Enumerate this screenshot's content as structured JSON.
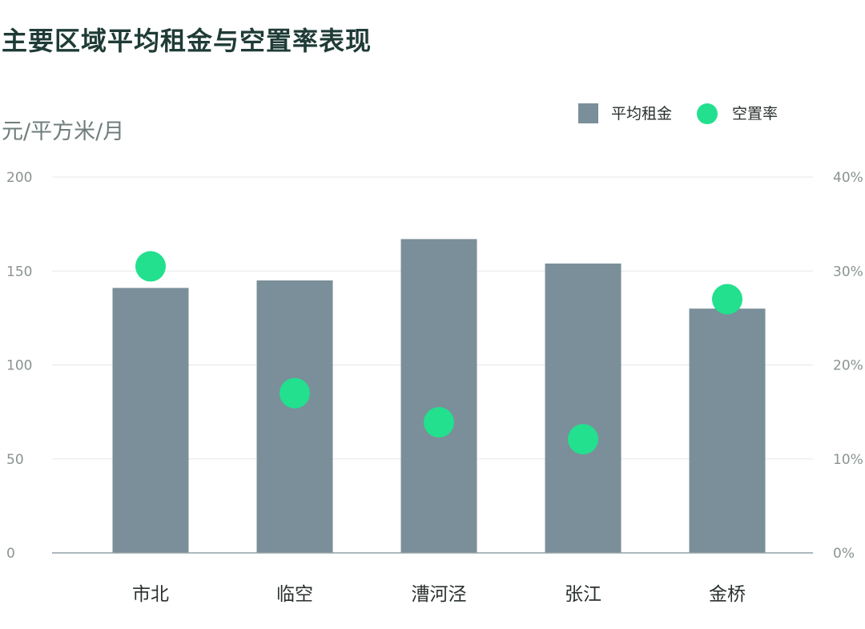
{
  "chart_data": {
    "type": "bar",
    "title": "主要区域平均租金与空置率表现",
    "ylabel": "元/平方米/月",
    "categories": [
      "市北",
      "临空",
      "漕河泾",
      "张江",
      "金桥"
    ],
    "y_ticks": [
      "0",
      "50",
      "100",
      "150",
      "200"
    ],
    "y2_ticks": [
      "0%",
      "10%",
      "20%",
      "30%",
      "40%"
    ],
    "ylim": [
      0,
      200
    ],
    "y2lim": [
      0,
      40
    ],
    "grid": true,
    "legend_position": "top-right",
    "series": [
      {
        "name": "平均租金",
        "type": "bar",
        "axis": "left",
        "color": "#7a8f99",
        "values": [
          141,
          145,
          167,
          154,
          130
        ]
      },
      {
        "name": "空置率",
        "type": "scatter",
        "axis": "right",
        "unit": "%",
        "color": "#22e08e",
        "values": [
          30.5,
          17.0,
          13.9,
          12.1,
          27.0
        ]
      }
    ]
  }
}
